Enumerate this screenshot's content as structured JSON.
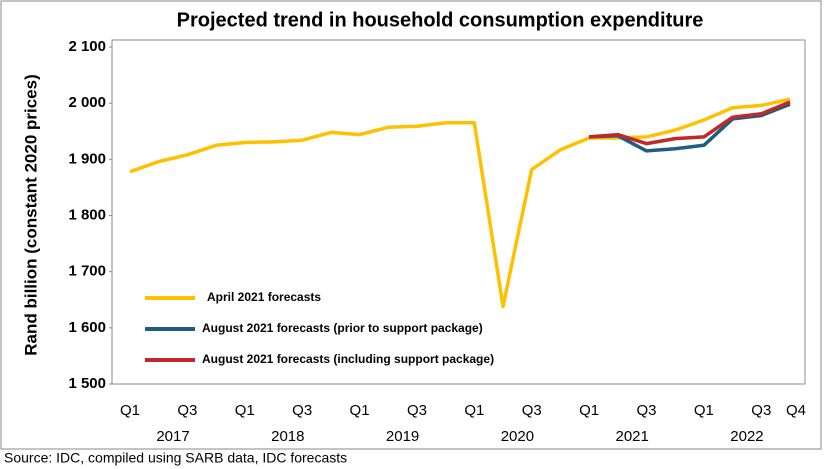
{
  "chart_data": {
    "type": "line",
    "title": "Projected trend in household consumption expenditure",
    "y_label": "Rand billion (constant 2020 prices)",
    "source": "Source: IDC, compiled using SARB data, IDC forecasts",
    "categories": [
      "Q1",
      null,
      "Q3",
      null,
      "Q1",
      null,
      "Q3",
      null,
      "Q1",
      null,
      "Q3",
      null,
      "Q1",
      null,
      "Q3",
      null,
      "Q1",
      null,
      "Q3",
      null,
      "Q1",
      null,
      "Q3",
      "Q4"
    ],
    "years": [
      "2017",
      "2018",
      "2019",
      "2020",
      "2021",
      "2022"
    ],
    "series": [
      {
        "name": "April 2021 forecasts",
        "color": "#ffc000",
        "values": [
          1878,
          1896,
          1908,
          1925,
          1930,
          1931,
          1934,
          1948,
          1944,
          1957,
          1959,
          1965,
          1965,
          1638,
          1882,
          1917,
          1938,
          1938,
          1940,
          1952,
          1970,
          1992,
          1996,
          2007
        ]
      },
      {
        "name": "August 2021 forecasts (prior to support package)",
        "color": "#1f5c7f",
        "values": [
          null,
          null,
          null,
          null,
          null,
          null,
          null,
          null,
          null,
          null,
          null,
          null,
          null,
          null,
          null,
          null,
          1940,
          1942,
          1915,
          1919,
          1925,
          1972,
          1978,
          1998
        ]
      },
      {
        "name": "August 2021 forecasts (including support package)",
        "color": "#c0282b",
        "values": [
          null,
          null,
          null,
          null,
          null,
          null,
          null,
          null,
          null,
          null,
          null,
          null,
          null,
          null,
          null,
          null,
          1940,
          1944,
          1928,
          1937,
          1940,
          1975,
          1981,
          2002
        ]
      }
    ],
    "ylim": [
      1500,
      2100
    ],
    "yticks": [
      {
        "value": 1500,
        "label": "1 500"
      },
      {
        "value": 1600,
        "label": "1 600"
      },
      {
        "value": 1700,
        "label": "1 700"
      },
      {
        "value": 1800,
        "label": "1 800"
      },
      {
        "value": 1900,
        "label": "1 900"
      },
      {
        "value": 2000,
        "label": "2 000"
      },
      {
        "value": 2100,
        "label": "2 100"
      }
    ],
    "grid": false,
    "legend": "lower left"
  }
}
